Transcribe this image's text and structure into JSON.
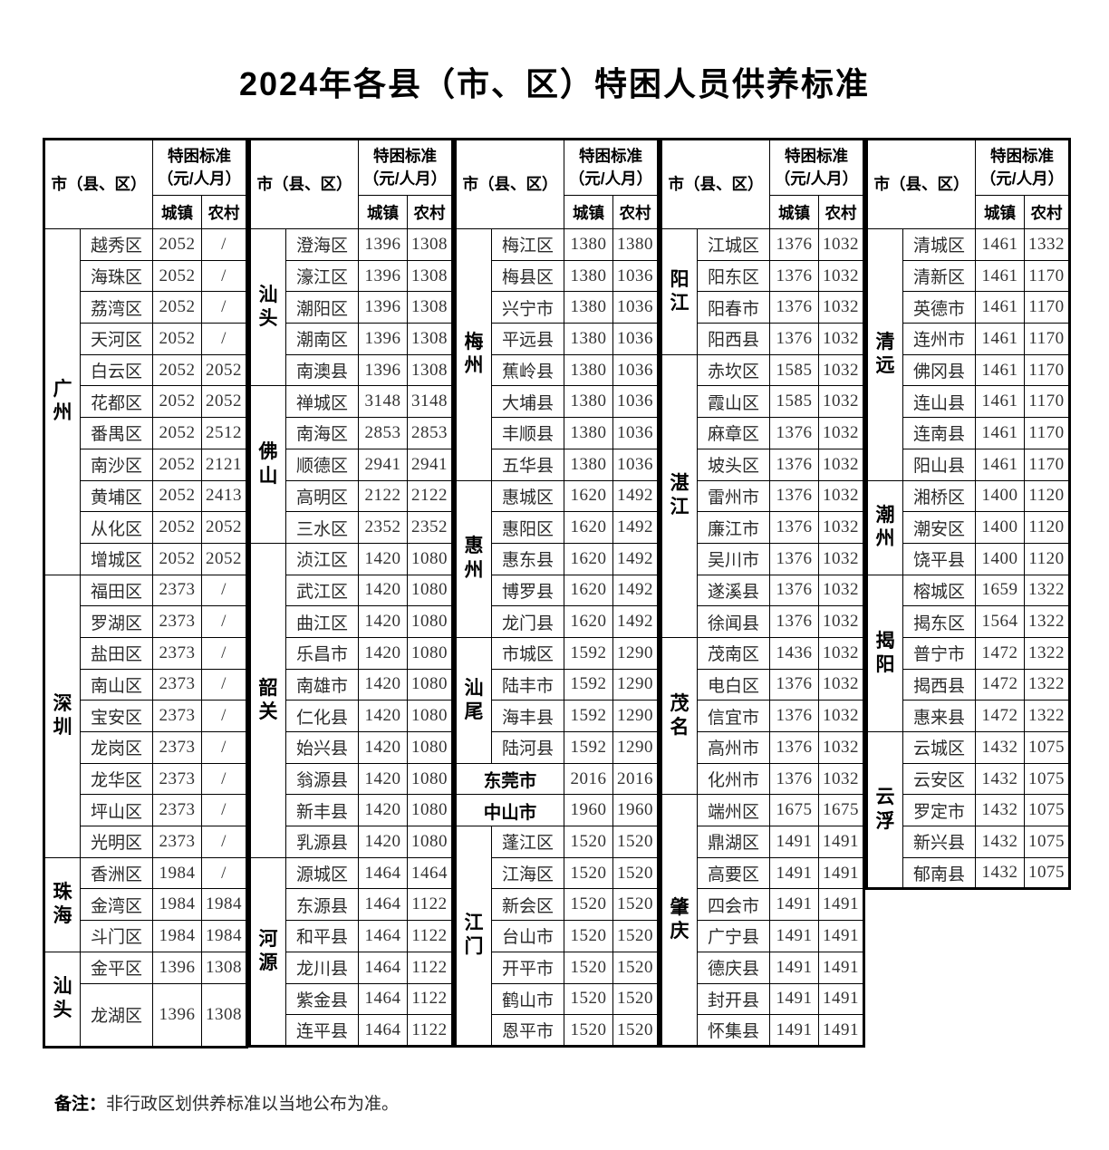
{
  "title": "2024年各县（市、区）特困人员供养标准",
  "table_header": {
    "region": "市（县、区）",
    "standard": "特困标准（元/人月）",
    "urban": "城镇",
    "rural": "农村"
  },
  "note": {
    "label": "备注：",
    "text": "非行政区划供养标准以当地公布为准。"
  },
  "column_groups": [
    {
      "sections": [
        {
          "city": "广州",
          "rows": [
            {
              "district": "越秀区",
              "urban": "2052",
              "rural": "/"
            },
            {
              "district": "海珠区",
              "urban": "2052",
              "rural": "/"
            },
            {
              "district": "荔湾区",
              "urban": "2052",
              "rural": "/"
            },
            {
              "district": "天河区",
              "urban": "2052",
              "rural": "/"
            },
            {
              "district": "白云区",
              "urban": "2052",
              "rural": "2052"
            },
            {
              "district": "花都区",
              "urban": "2052",
              "rural": "2052"
            },
            {
              "district": "番禺区",
              "urban": "2052",
              "rural": "2512"
            },
            {
              "district": "南沙区",
              "urban": "2052",
              "rural": "2121"
            },
            {
              "district": "黄埔区",
              "urban": "2052",
              "rural": "2413"
            },
            {
              "district": "从化区",
              "urban": "2052",
              "rural": "2052"
            },
            {
              "district": "增城区",
              "urban": "2052",
              "rural": "2052"
            }
          ]
        },
        {
          "city": "深圳",
          "rows": [
            {
              "district": "福田区",
              "urban": "2373",
              "rural": "/"
            },
            {
              "district": "罗湖区",
              "urban": "2373",
              "rural": "/"
            },
            {
              "district": "盐田区",
              "urban": "2373",
              "rural": "/"
            },
            {
              "district": "南山区",
              "urban": "2373",
              "rural": "/"
            },
            {
              "district": "宝安区",
              "urban": "2373",
              "rural": "/"
            },
            {
              "district": "龙岗区",
              "urban": "2373",
              "rural": "/"
            },
            {
              "district": "龙华区",
              "urban": "2373",
              "rural": "/"
            },
            {
              "district": "坪山区",
              "urban": "2373",
              "rural": "/"
            },
            {
              "district": "光明区",
              "urban": "2373",
              "rural": "/"
            }
          ]
        },
        {
          "city": "珠海",
          "rows": [
            {
              "district": "香洲区",
              "urban": "1984",
              "rural": "/"
            },
            {
              "district": "金湾区",
              "urban": "1984",
              "rural": "1984"
            },
            {
              "district": "斗门区",
              "urban": "1984",
              "rural": "1984"
            }
          ]
        },
        {
          "city": "汕头",
          "rows": [
            {
              "district": "金平区",
              "urban": "1396",
              "rural": "1308"
            },
            {
              "district": "龙湖区",
              "urban": "1396",
              "rural": "1308",
              "tall": true
            }
          ]
        }
      ]
    },
    {
      "sections": [
        {
          "city": "汕头",
          "rows": [
            {
              "district": "澄海区",
              "urban": "1396",
              "rural": "1308"
            },
            {
              "district": "濠江区",
              "urban": "1396",
              "rural": "1308"
            },
            {
              "district": "潮阳区",
              "urban": "1396",
              "rural": "1308"
            },
            {
              "district": "潮南区",
              "urban": "1396",
              "rural": "1308"
            },
            {
              "district": "南澳县",
              "urban": "1396",
              "rural": "1308"
            }
          ]
        },
        {
          "city": "佛山",
          "rows": [
            {
              "district": "禅城区",
              "urban": "3148",
              "rural": "3148"
            },
            {
              "district": "南海区",
              "urban": "2853",
              "rural": "2853"
            },
            {
              "district": "顺德区",
              "urban": "2941",
              "rural": "2941"
            },
            {
              "district": "高明区",
              "urban": "2122",
              "rural": "2122"
            },
            {
              "district": "三水区",
              "urban": "2352",
              "rural": "2352"
            }
          ]
        },
        {
          "city": "韶关",
          "rows": [
            {
              "district": "浈江区",
              "urban": "1420",
              "rural": "1080"
            },
            {
              "district": "武江区",
              "urban": "1420",
              "rural": "1080"
            },
            {
              "district": "曲江区",
              "urban": "1420",
              "rural": "1080"
            },
            {
              "district": "乐昌市",
              "urban": "1420",
              "rural": "1080"
            },
            {
              "district": "南雄市",
              "urban": "1420",
              "rural": "1080"
            },
            {
              "district": "仁化县",
              "urban": "1420",
              "rural": "1080"
            },
            {
              "district": "始兴县",
              "urban": "1420",
              "rural": "1080"
            },
            {
              "district": "翁源县",
              "urban": "1420",
              "rural": "1080"
            },
            {
              "district": "新丰县",
              "urban": "1420",
              "rural": "1080"
            },
            {
              "district": "乳源县",
              "urban": "1420",
              "rural": "1080"
            }
          ]
        },
        {
          "city": "河源",
          "rows": [
            {
              "district": "源城区",
              "urban": "1464",
              "rural": "1464"
            },
            {
              "district": "东源县",
              "urban": "1464",
              "rural": "1122"
            },
            {
              "district": "和平县",
              "urban": "1464",
              "rural": "1122"
            },
            {
              "district": "龙川县",
              "urban": "1464",
              "rural": "1122"
            },
            {
              "district": "紫金县",
              "urban": "1464",
              "rural": "1122"
            },
            {
              "district": "连平县",
              "urban": "1464",
              "rural": "1122"
            }
          ]
        }
      ]
    },
    {
      "sections": [
        {
          "city": "梅州",
          "rows": [
            {
              "district": "梅江区",
              "urban": "1380",
              "rural": "1380"
            },
            {
              "district": "梅县区",
              "urban": "1380",
              "rural": "1036"
            },
            {
              "district": "兴宁市",
              "urban": "1380",
              "rural": "1036"
            },
            {
              "district": "平远县",
              "urban": "1380",
              "rural": "1036"
            },
            {
              "district": "蕉岭县",
              "urban": "1380",
              "rural": "1036"
            },
            {
              "district": "大埔县",
              "urban": "1380",
              "rural": "1036"
            },
            {
              "district": "丰顺县",
              "urban": "1380",
              "rural": "1036"
            },
            {
              "district": "五华县",
              "urban": "1380",
              "rural": "1036"
            }
          ]
        },
        {
          "city": "惠州",
          "rows": [
            {
              "district": "惠城区",
              "urban": "1620",
              "rural": "1492"
            },
            {
              "district": "惠阳区",
              "urban": "1620",
              "rural": "1492"
            },
            {
              "district": "惠东县",
              "urban": "1620",
              "rural": "1492"
            },
            {
              "district": "博罗县",
              "urban": "1620",
              "rural": "1492"
            },
            {
              "district": "龙门县",
              "urban": "1620",
              "rural": "1492"
            }
          ]
        },
        {
          "city": "汕尾",
          "rows": [
            {
              "district": "市城区",
              "urban": "1592",
              "rural": "1290"
            },
            {
              "district": "陆丰市",
              "urban": "1592",
              "rural": "1290"
            },
            {
              "district": "海丰县",
              "urban": "1592",
              "rural": "1290"
            },
            {
              "district": "陆河县",
              "urban": "1592",
              "rural": "1290"
            }
          ]
        },
        {
          "city": "东莞市",
          "merged": true,
          "urban": "2016",
          "rural": "2016"
        },
        {
          "city": "中山市",
          "merged": true,
          "urban": "1960",
          "rural": "1960"
        },
        {
          "city": "江门",
          "rows": [
            {
              "district": "蓬江区",
              "urban": "1520",
              "rural": "1520"
            },
            {
              "district": "江海区",
              "urban": "1520",
              "rural": "1520"
            },
            {
              "district": "新会区",
              "urban": "1520",
              "rural": "1520"
            },
            {
              "district": "台山市",
              "urban": "1520",
              "rural": "1520"
            },
            {
              "district": "开平市",
              "urban": "1520",
              "rural": "1520"
            },
            {
              "district": "鹤山市",
              "urban": "1520",
              "rural": "1520"
            },
            {
              "district": "恩平市",
              "urban": "1520",
              "rural": "1520"
            }
          ]
        }
      ]
    },
    {
      "sections": [
        {
          "city": "阳江",
          "rows": [
            {
              "district": "江城区",
              "urban": "1376",
              "rural": "1032"
            },
            {
              "district": "阳东区",
              "urban": "1376",
              "rural": "1032"
            },
            {
              "district": "阳春市",
              "urban": "1376",
              "rural": "1032"
            },
            {
              "district": "阳西县",
              "urban": "1376",
              "rural": "1032"
            }
          ]
        },
        {
          "city": "湛江",
          "rows": [
            {
              "district": "赤坎区",
              "urban": "1585",
              "rural": "1032"
            },
            {
              "district": "霞山区",
              "urban": "1585",
              "rural": "1032"
            },
            {
              "district": "麻章区",
              "urban": "1376",
              "rural": "1032"
            },
            {
              "district": "坡头区",
              "urban": "1376",
              "rural": "1032"
            },
            {
              "district": "雷州市",
              "urban": "1376",
              "rural": "1032"
            },
            {
              "district": "廉江市",
              "urban": "1376",
              "rural": "1032"
            },
            {
              "district": "吴川市",
              "urban": "1376",
              "rural": "1032"
            },
            {
              "district": "遂溪县",
              "urban": "1376",
              "rural": "1032"
            },
            {
              "district": "徐闻县",
              "urban": "1376",
              "rural": "1032"
            }
          ]
        },
        {
          "city": "茂名",
          "rows": [
            {
              "district": "茂南区",
              "urban": "1436",
              "rural": "1032"
            },
            {
              "district": "电白区",
              "urban": "1376",
              "rural": "1032"
            },
            {
              "district": "信宜市",
              "urban": "1376",
              "rural": "1032"
            },
            {
              "district": "高州市",
              "urban": "1376",
              "rural": "1032"
            },
            {
              "district": "化州市",
              "urban": "1376",
              "rural": "1032"
            }
          ]
        },
        {
          "city": "肇庆",
          "rows": [
            {
              "district": "端州区",
              "urban": "1675",
              "rural": "1675"
            },
            {
              "district": "鼎湖区",
              "urban": "1491",
              "rural": "1491"
            },
            {
              "district": "高要区",
              "urban": "1491",
              "rural": "1491"
            },
            {
              "district": "四会市",
              "urban": "1491",
              "rural": "1491"
            },
            {
              "district": "广宁县",
              "urban": "1491",
              "rural": "1491"
            },
            {
              "district": "德庆县",
              "urban": "1491",
              "rural": "1491"
            },
            {
              "district": "封开县",
              "urban": "1491",
              "rural": "1491"
            },
            {
              "district": "怀集县",
              "urban": "1491",
              "rural": "1491"
            }
          ]
        }
      ]
    },
    {
      "sections": [
        {
          "city": "清远",
          "rows": [
            {
              "district": "清城区",
              "urban": "1461",
              "rural": "1332"
            },
            {
              "district": "清新区",
              "urban": "1461",
              "rural": "1170"
            },
            {
              "district": "英德市",
              "urban": "1461",
              "rural": "1170"
            },
            {
              "district": "连州市",
              "urban": "1461",
              "rural": "1170"
            },
            {
              "district": "佛冈县",
              "urban": "1461",
              "rural": "1170"
            },
            {
              "district": "连山县",
              "urban": "1461",
              "rural": "1170"
            },
            {
              "district": "连南县",
              "urban": "1461",
              "rural": "1170"
            },
            {
              "district": "阳山县",
              "urban": "1461",
              "rural": "1170"
            }
          ]
        },
        {
          "city": "潮州",
          "rows": [
            {
              "district": "湘桥区",
              "urban": "1400",
              "rural": "1120"
            },
            {
              "district": "潮安区",
              "urban": "1400",
              "rural": "1120"
            },
            {
              "district": "饶平县",
              "urban": "1400",
              "rural": "1120"
            }
          ]
        },
        {
          "city": "揭阳",
          "rows": [
            {
              "district": "榕城区",
              "urban": "1659",
              "rural": "1322"
            },
            {
              "district": "揭东区",
              "urban": "1564",
              "rural": "1322"
            },
            {
              "district": "普宁市",
              "urban": "1472",
              "rural": "1322"
            },
            {
              "district": "揭西县",
              "urban": "1472",
              "rural": "1322"
            },
            {
              "district": "惠来县",
              "urban": "1472",
              "rural": "1322"
            }
          ]
        },
        {
          "city": "云浮",
          "rows": [
            {
              "district": "云城区",
              "urban": "1432",
              "rural": "1075"
            },
            {
              "district": "云安区",
              "urban": "1432",
              "rural": "1075"
            },
            {
              "district": "罗定市",
              "urban": "1432",
              "rural": "1075"
            },
            {
              "district": "新兴县",
              "urban": "1432",
              "rural": "1075"
            },
            {
              "district": "郁南县",
              "urban": "1432",
              "rural": "1075"
            }
          ]
        }
      ]
    }
  ]
}
